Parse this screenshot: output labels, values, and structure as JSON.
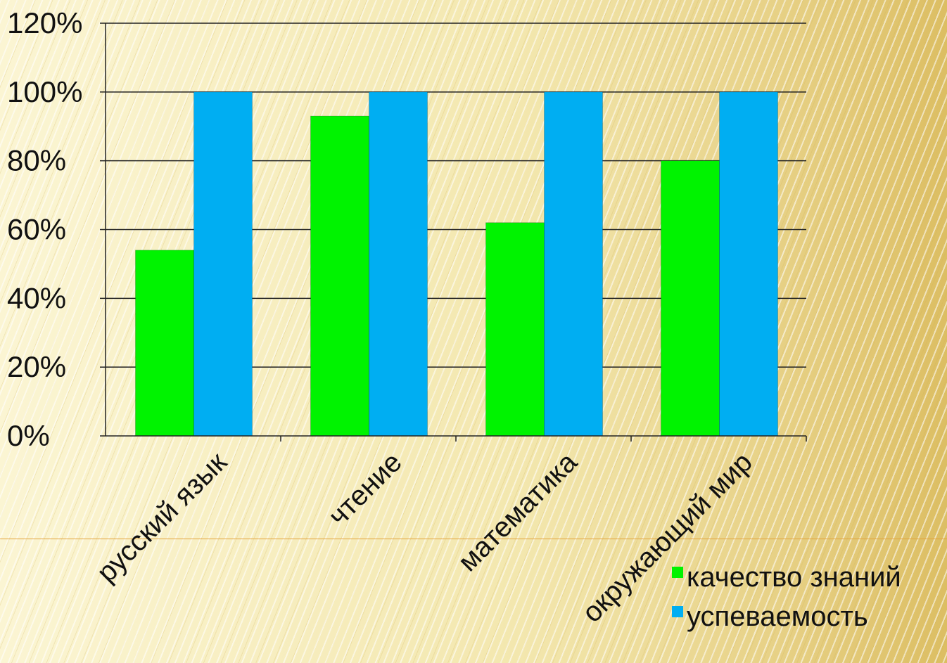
{
  "colors": {
    "series_1": "#00f300",
    "series_2": "#00aef2",
    "axis": "#222222",
    "text": "#111111",
    "accent_line": "#e3a23b"
  },
  "chart_data": {
    "type": "bar",
    "categories": [
      "русский язык",
      "чтение",
      "математика",
      "окружающий мир"
    ],
    "series": [
      {
        "name": "качество знаний",
        "values": [
          54,
          93,
          62,
          80
        ]
      },
      {
        "name": "успеваемость",
        "values": [
          100,
          100,
          100,
          100
        ]
      }
    ],
    "title": "",
    "xlabel": "",
    "ylabel": "",
    "ylim": [
      0,
      120
    ],
    "yticks": [
      0,
      20,
      40,
      60,
      80,
      100,
      120
    ],
    "ytick_labels": [
      "0%",
      "20%",
      "40%",
      "60%",
      "80%",
      "100%",
      "120%"
    ],
    "grid": true,
    "legend": "bottom-right"
  }
}
